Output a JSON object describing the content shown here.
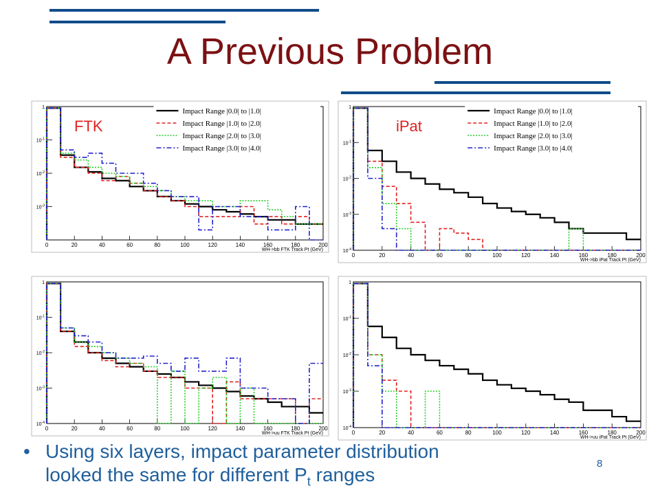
{
  "slide": {
    "title": "A Previous Problem",
    "bullet_marker": "•",
    "bullet_text_line1": "Using six layers, impact parameter distribution",
    "bullet_text_line2_pre": "looked the same for different P",
    "bullet_text_sub": "t",
    "bullet_text_line2_post": " ranges",
    "page_number": "8",
    "colors": {
      "title": "#7b1113",
      "accent_lines": "#0f4c8a",
      "bullet_text": "#1f5f9c",
      "panel_label": "#e02020"
    }
  },
  "chart_data": [
    {
      "type": "line",
      "panel_label": "FTK",
      "xlabel": "WH->bb FTK Track Pt (GeV)",
      "log_y": true,
      "xlim": [
        0,
        200
      ],
      "ylim": [
        0.0001,
        1
      ],
      "x_ticks": [
        "0",
        "20",
        "40",
        "60",
        "80",
        "100",
        "120",
        "140",
        "160",
        "180",
        "200"
      ],
      "y_ticks": [
        "1",
        "10^-1",
        "10^-2",
        "10^-3"
      ],
      "bin_edges": [
        0,
        10,
        20,
        30,
        40,
        50,
        60,
        70,
        80,
        90,
        100,
        110,
        120,
        130,
        140,
        150,
        160,
        170,
        180,
        190,
        200
      ],
      "legend_position": "top-right",
      "series": [
        {
          "name": "Impact Range |0.0| to |1.0|",
          "color": "#000000",
          "style": "solid",
          "values": [
            0.9,
            0.035,
            0.015,
            0.011,
            0.007,
            0.006,
            0.004,
            0.003,
            0.002,
            0.0015,
            0.0012,
            0.001,
            0.0008,
            0.0007,
            0.0006,
            0.0005,
            0.0004,
            0.0004,
            0.0003,
            0.0003
          ]
        },
        {
          "name": "Impact Range |1.0| to |2.0|",
          "color": "#e02020",
          "style": "dashed",
          "values": [
            0.9,
            0.03,
            0.015,
            0.01,
            0.006,
            0.008,
            0.005,
            0.003,
            0.002,
            0.0015,
            0.001,
            0.0005,
            0.0005,
            0.0005,
            0.001,
            0.0003,
            0.0005,
            0.0003,
            0.0005,
            0.0003
          ]
        },
        {
          "name": "Impact Range |2.0| to |3.0|",
          "color": "#22cc22",
          "style": "dotted",
          "values": [
            0.9,
            0.04,
            0.025,
            0.015,
            0.01,
            0.008,
            0.005,
            0.004,
            0.003,
            0.002,
            0.0015,
            0.0015,
            0.001,
            0.001,
            0.0015,
            0.0015,
            0.0008,
            0.0005,
            0.0003,
            0.0003
          ]
        },
        {
          "name": "Impact Range |3.0| to |4.0|",
          "color": "#2020cc",
          "style": "dashdot",
          "values": [
            0.9,
            0.05,
            0.03,
            0.04,
            0.02,
            0.01,
            0.01,
            0.005,
            0.003,
            0.002,
            0.002,
            0.0002,
            0.001,
            0.001,
            0.0005,
            0.0005,
            0.0002,
            0.0002,
            0.001,
            0.0001
          ]
        }
      ]
    },
    {
      "type": "line",
      "panel_label": "iPat",
      "xlabel": "WH->bb iPat Track Pt (GeV)",
      "log_y": true,
      "xlim": [
        0,
        200
      ],
      "ylim": [
        0.0001,
        1
      ],
      "x_ticks": [
        "0",
        "20",
        "40",
        "60",
        "80",
        "100",
        "120",
        "140",
        "160",
        "180",
        "200"
      ],
      "y_ticks": [
        "1",
        "10^-1",
        "10^-2",
        "10^-3",
        "10^-4"
      ],
      "bin_edges": [
        0,
        10,
        20,
        30,
        40,
        50,
        60,
        70,
        80,
        90,
        100,
        110,
        120,
        130,
        140,
        150,
        160,
        170,
        180,
        190,
        200
      ],
      "legend_position": "top-right",
      "series": [
        {
          "name": "Impact Range |0.0| to |1.0|",
          "color": "#000000",
          "style": "solid",
          "values": [
            0.9,
            0.06,
            0.03,
            0.015,
            0.01,
            0.007,
            0.005,
            0.004,
            0.003,
            0.002,
            0.0015,
            0.0012,
            0.001,
            0.0008,
            0.0006,
            0.0004,
            0.0003,
            0.0003,
            0.0003,
            0.0002
          ]
        },
        {
          "name": "Impact Range |1.0| to |2.0|",
          "color": "#e02020",
          "style": "dashed",
          "values": [
            0.9,
            0.03,
            0.006,
            0.002,
            0.0006,
            0.0001,
            0.0004,
            0.0003,
            0.0002,
            0.0001,
            0,
            0,
            0,
            0,
            0,
            0,
            0,
            0,
            0,
            0
          ]
        },
        {
          "name": "Impact Range |2.0| to |3.0|",
          "color": "#22cc22",
          "style": "dotted",
          "values": [
            0.9,
            0.02,
            0.002,
            0.0004,
            0.0001,
            0,
            0,
            0,
            0,
            0,
            0,
            0,
            0,
            0,
            0,
            0.0004,
            0,
            0,
            0,
            0
          ]
        },
        {
          "name": "Impact Range |3.0| to |4.0|",
          "color": "#2020cc",
          "style": "dashdot",
          "values": [
            0.9,
            0.01,
            0.0004,
            0.0001,
            0,
            0,
            0,
            0,
            0,
            0,
            0,
            0,
            0,
            0,
            0,
            0,
            0,
            0,
            0,
            0
          ]
        }
      ]
    },
    {
      "type": "line",
      "panel_label": "",
      "xlabel": "WH->uu FTK Track Pt (GeV)",
      "log_y": true,
      "xlim": [
        0,
        200
      ],
      "ylim": [
        0.0001,
        1
      ],
      "x_ticks": [
        "0",
        "20",
        "40",
        "60",
        "80",
        "100",
        "120",
        "140",
        "160",
        "180",
        "200"
      ],
      "y_ticks": [
        "1",
        "10^-1",
        "10^-2",
        "10^-3",
        "10^-4"
      ],
      "bin_edges": [
        0,
        10,
        20,
        30,
        40,
        50,
        60,
        70,
        80,
        90,
        100,
        110,
        120,
        130,
        140,
        150,
        160,
        170,
        180,
        190,
        200
      ],
      "series": [
        {
          "name": "Impact Range |0.0| to |1.0|",
          "color": "#000000",
          "style": "solid",
          "values": [
            0.9,
            0.04,
            0.02,
            0.01,
            0.007,
            0.005,
            0.004,
            0.003,
            0.0025,
            0.002,
            0.0015,
            0.0012,
            0.001,
            0.0008,
            0.0006,
            0.0005,
            0.0004,
            0.0003,
            0.0003,
            0.0002
          ]
        },
        {
          "name": "Impact Range |1.0| to |2.0|",
          "color": "#e02020",
          "style": "dashed",
          "values": [
            0.9,
            0.04,
            0.015,
            0.01,
            0.006,
            0.004,
            0.005,
            0.003,
            0.002,
            0.002,
            0.001,
            0.001,
            0.0001,
            0.0015,
            0.0005,
            0.0005,
            0.0005,
            0.0005,
            0.0001,
            0.0005
          ]
        },
        {
          "name": "Impact Range |2.0| to |3.0|",
          "color": "#22cc22",
          "style": "dotted",
          "values": [
            0.9,
            0.05,
            0.02,
            0.015,
            0.01,
            0.007,
            0.005,
            0.004,
            0.0001,
            0.003,
            0.0001,
            0.001,
            0.002,
            0.0001,
            0.001,
            0.0001,
            0.0001,
            0.0001,
            0.0001,
            0.0001
          ]
        },
        {
          "name": "Impact Range |3.0| to |4.0|",
          "color": "#2020cc",
          "style": "dashdot",
          "values": [
            0.9,
            0.05,
            0.03,
            0.02,
            0.01,
            0.007,
            0.007,
            0.008,
            0.005,
            0.003,
            0.007,
            0.003,
            0.003,
            0.007,
            0.001,
            0.001,
            0.0005,
            0.0005,
            0.0001,
            0.005
          ]
        }
      ]
    },
    {
      "type": "line",
      "panel_label": "",
      "xlabel": "WH->uu iPat Track Pt (GeV)",
      "log_y": true,
      "xlim": [
        0,
        200
      ],
      "ylim": [
        0.0001,
        1
      ],
      "x_ticks": [
        "0",
        "20",
        "40",
        "60",
        "80",
        "100",
        "120",
        "140",
        "160",
        "180",
        "200"
      ],
      "y_ticks": [
        "1",
        "10^-1",
        "10^-2",
        "10^-3",
        "10^-4"
      ],
      "bin_edges": [
        0,
        10,
        20,
        30,
        40,
        50,
        60,
        70,
        80,
        90,
        100,
        110,
        120,
        130,
        140,
        150,
        160,
        170,
        180,
        190,
        200
      ],
      "series": [
        {
          "name": "Impact Range |0.0| to |1.0|",
          "color": "#000000",
          "style": "solid",
          "values": [
            0.9,
            0.06,
            0.03,
            0.015,
            0.01,
            0.007,
            0.005,
            0.004,
            0.003,
            0.002,
            0.0015,
            0.0012,
            0.001,
            0.0008,
            0.0006,
            0.0005,
            0.0003,
            0.0003,
            0.0002,
            0.00015
          ]
        },
        {
          "name": "Impact Range |1.0| to |2.0|",
          "color": "#e02020",
          "style": "dashed",
          "values": [
            0.9,
            0.01,
            0.002,
            0.001,
            0.0001,
            0,
            0,
            0,
            0,
            0,
            0,
            0,
            0,
            0,
            0,
            0,
            0,
            0,
            0,
            0
          ]
        },
        {
          "name": "Impact Range |2.0| to |3.0|",
          "color": "#22cc22",
          "style": "dotted",
          "values": [
            0.9,
            0.01,
            0.001,
            0.0001,
            0.0001,
            0.001,
            0.0001,
            0,
            0,
            0,
            0,
            0,
            0,
            0,
            0,
            0,
            0,
            0,
            0,
            0
          ]
        },
        {
          "name": "Impact Range |3.0| to |4.0|",
          "color": "#2020cc",
          "style": "dashdot",
          "values": [
            0.9,
            0.005,
            0.0001,
            0,
            0,
            0,
            0,
            0,
            0,
            0,
            0,
            0,
            0,
            0,
            0,
            0,
            0,
            0,
            0,
            0
          ]
        }
      ]
    }
  ]
}
